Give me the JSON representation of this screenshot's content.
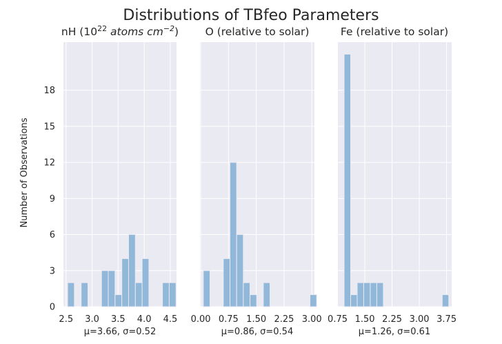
{
  "figure": {
    "title": "Distributions of TBfeo Parameters",
    "ylabel": "Number of Observations"
  },
  "chart_data": [
    {
      "type": "bar",
      "title": "nH (10²² atoms cm⁻²)",
      "title_parts": {
        "prefix": "nH (10",
        "sup1": "22",
        "mid": " atoms cm",
        "sup2": "−2",
        "suffix": ")"
      },
      "xlabel": "μ=3.66, σ=0.52",
      "xlim": [
        2.45,
        4.62
      ],
      "ylim": [
        0,
        22
      ],
      "xticks": [
        2.5,
        3.0,
        3.5,
        4.0,
        4.5
      ],
      "xtick_labels": [
        "2.5",
        "3.0",
        "3.5",
        "4.0",
        "4.5"
      ],
      "yticks": [
        0,
        3,
        6,
        9,
        12,
        15,
        18
      ],
      "ytick_labels": [
        "0",
        "3",
        "6",
        "9",
        "12",
        "15",
        "18"
      ],
      "bin_edges": [
        2.53,
        2.66,
        2.79,
        2.92,
        3.05,
        3.18,
        3.31,
        3.44,
        3.57,
        3.7,
        3.83,
        3.96,
        4.09,
        4.22,
        4.35,
        4.48,
        4.61
      ],
      "values": [
        2,
        0,
        2,
        0,
        0,
        3,
        3,
        1,
        4,
        6,
        2,
        4,
        0,
        0,
        2,
        2
      ]
    },
    {
      "type": "bar",
      "title": "O (relative to solar)",
      "xlabel": "μ=0.86, σ=0.54",
      "xlim": [
        -0.02,
        3.07
      ],
      "ylim": [
        0,
        22
      ],
      "xticks": [
        0.0,
        0.75,
        1.5,
        2.25,
        3.0
      ],
      "xtick_labels": [
        "0.00",
        "0.75",
        "1.50",
        "2.25",
        "3.00"
      ],
      "yticks": [
        0,
        3,
        6,
        9,
        12,
        15,
        18
      ],
      "ytick_labels": [
        "0",
        "3",
        "6",
        "9",
        "12",
        "15",
        "18"
      ],
      "bin_edges": [
        0.07,
        0.25,
        0.43,
        0.61,
        0.79,
        0.97,
        1.15,
        1.33,
        1.51,
        1.69,
        1.87,
        2.05,
        2.23,
        2.41,
        2.59,
        2.77,
        2.95,
        3.13
      ],
      "values": [
        3,
        0,
        0,
        4,
        12,
        6,
        2,
        1,
        0,
        2,
        0,
        0,
        0,
        0,
        0,
        0,
        1
      ]
    },
    {
      "type": "bar",
      "title": "Fe (relative to solar)",
      "xlabel": "μ=1.26, σ=0.61",
      "xlim": [
        0.74,
        3.89
      ],
      "ylim": [
        0,
        22
      ],
      "xticks": [
        0.75,
        1.5,
        2.25,
        3.0,
        3.75
      ],
      "xtick_labels": [
        "0.75",
        "1.50",
        "2.25",
        "3.00",
        "3.75"
      ],
      "yticks": [
        0,
        3,
        6,
        9,
        12,
        15,
        18
      ],
      "ytick_labels": [
        "0",
        "3",
        "6",
        "9",
        "12",
        "15",
        "18"
      ],
      "bin_edges": [
        0.75,
        0.93,
        1.11,
        1.29,
        1.47,
        1.65,
        1.83,
        2.01,
        2.19,
        2.37,
        2.55,
        2.73,
        2.91,
        3.09,
        3.27,
        3.45,
        3.63,
        3.81,
        3.99
      ],
      "values": [
        0,
        21,
        1,
        2,
        2,
        2,
        2,
        0,
        0,
        0,
        0,
        0,
        0,
        0,
        0,
        0,
        1,
        0
      ]
    }
  ]
}
